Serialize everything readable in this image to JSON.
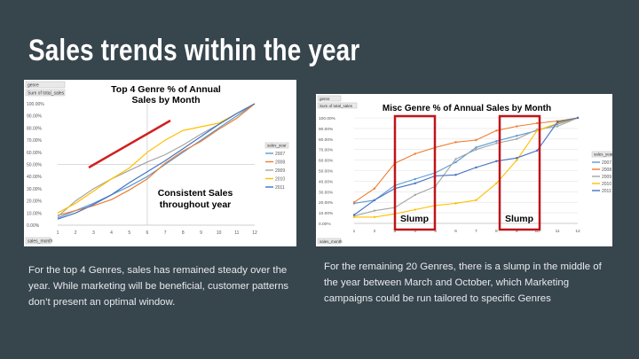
{
  "slide": {
    "title": "Sales trends within the year",
    "caption_left": "For the top 4 Genres, sales has remained steady over the year. While marketing will be beneficial, customer patterns don’t present an optimal window.",
    "caption_right": "For the remaining 20 Genres, there is a slump in the middle of the year between March and October, which Marketing campaigns could be run tailored to specific Genres"
  },
  "colors": {
    "background": "#37454d",
    "series": [
      "#5b9bd5",
      "#ed7d31",
      "#a5a5a5",
      "#ffc000",
      "#4472c4"
    ],
    "annotation_red": "#d11f1f"
  },
  "chart_data": [
    {
      "type": "line",
      "title": "Top 4 Genre % of Annual Sales by Month",
      "filter_labels": [
        "genre",
        "Sum of total_sales"
      ],
      "axis_button_label": "sales_month",
      "legend_header": "sales_year",
      "legend_placement": "right",
      "x": [
        1,
        2,
        3,
        4,
        5,
        6,
        7,
        8,
        9,
        10,
        11,
        12
      ],
      "ylim": [
        0,
        100
      ],
      "yticks": [
        "0.00%",
        "10.00%",
        "20.00%",
        "30.00%",
        "40.00%",
        "50.00%",
        "60.00%",
        "70.00%",
        "80.00%",
        "90.00%",
        "100.00%"
      ],
      "grid": false,
      "series": [
        {
          "name": "2007",
          "values": [
            6,
            12,
            18,
            25,
            32,
            40,
            50,
            60,
            70,
            80,
            90,
            100
          ]
        },
        {
          "name": "2008",
          "values": [
            8,
            12,
            16,
            21,
            29,
            38,
            51,
            61,
            69,
            79,
            88,
            100
          ]
        },
        {
          "name": "2009",
          "values": [
            7,
            20,
            30,
            38,
            45,
            52,
            58,
            66,
            75,
            83,
            92,
            100
          ]
        },
        {
          "name": "2010",
          "values": [
            10,
            18,
            28,
            38,
            47,
            60,
            70,
            78,
            81,
            84,
            92,
            100
          ]
        },
        {
          "name": "2011",
          "values": [
            5,
            10,
            17,
            25,
            35,
            44,
            53,
            63,
            73,
            83,
            92,
            100
          ]
        }
      ],
      "annotations": [
        {
          "text": "Consistent Sales throughout year"
        }
      ]
    },
    {
      "type": "line",
      "title": "Misc Genre % of Annual Sales by Month",
      "filter_labels": [
        "genre",
        "Sum of total_sales"
      ],
      "axis_button_label": "sales_month",
      "legend_header": "sales_year",
      "legend_placement": "right",
      "x": [
        1,
        2,
        3,
        4,
        5,
        6,
        7,
        8,
        9,
        10,
        11,
        12
      ],
      "ylim": [
        0,
        100
      ],
      "yticks": [
        "0.00%",
        "10.00%",
        "20.00%",
        "30.00%",
        "40.00%",
        "50.00%",
        "60.00%",
        "70.00%",
        "80.00%",
        "90.00%",
        "100.00%"
      ],
      "grid": true,
      "series": [
        {
          "name": "2007",
          "values": [
            19,
            22,
            36,
            42,
            48,
            58,
            72,
            78,
            83,
            88,
            94,
            100
          ]
        },
        {
          "name": "2008",
          "values": [
            20,
            33,
            57,
            66,
            72,
            77,
            79,
            88,
            92,
            95,
            97,
            100
          ]
        },
        {
          "name": "2009",
          "values": [
            7,
            12,
            15,
            27,
            35,
            61,
            70,
            76,
            80,
            89,
            92,
            100
          ]
        },
        {
          "name": "2010",
          "values": [
            6,
            6,
            9,
            13,
            17,
            19,
            22,
            38,
            60,
            88,
            95,
            100
          ]
        },
        {
          "name": "2011",
          "values": [
            8,
            22,
            33,
            38,
            45,
            46,
            53,
            59,
            62,
            69,
            96,
            100
          ]
        }
      ],
      "annotations": [
        {
          "text": "Slump"
        },
        {
          "text": "Slump"
        }
      ]
    }
  ]
}
